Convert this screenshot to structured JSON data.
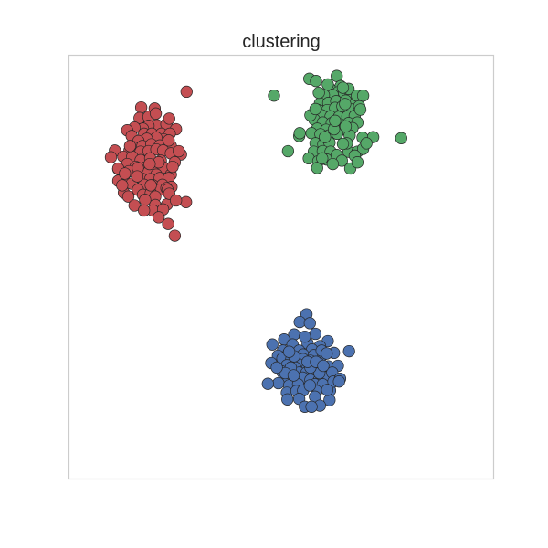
{
  "chart_data": {
    "type": "scatter",
    "title": "clustering",
    "xlabel": "",
    "ylabel": "",
    "x_ticks": [],
    "y_ticks": [],
    "xlim": [
      -4.31,
      3.27
    ],
    "ylim": [
      -3.29,
      4.27
    ],
    "grid": false,
    "legend": false,
    "series": [
      {
        "color": "#c44e52",
        "points": [
          [
            -3.02,
            3.34
          ],
          [
            -2.78,
            3.32
          ],
          [
            -3.05,
            3.15
          ],
          [
            -2.89,
            3.17
          ],
          [
            -2.74,
            3.02
          ],
          [
            -2.57,
            3.04
          ],
          [
            -2.52,
            3.14
          ],
          [
            -2.89,
            3.01
          ],
          [
            -2.99,
            2.96
          ],
          [
            -3.14,
            2.98
          ],
          [
            -3.27,
            2.93
          ],
          [
            -3.19,
            2.83
          ],
          [
            -2.97,
            2.87
          ],
          [
            -2.83,
            2.87
          ],
          [
            -2.66,
            2.87
          ],
          [
            -2.4,
            2.95
          ],
          [
            -2.51,
            2.87
          ],
          [
            -2.62,
            2.77
          ],
          [
            -2.75,
            2.8
          ],
          [
            -2.92,
            2.78
          ],
          [
            -3.07,
            2.74
          ],
          [
            -3.16,
            2.63
          ],
          [
            -3.0,
            2.65
          ],
          [
            -2.84,
            2.68
          ],
          [
            -2.69,
            2.66
          ],
          [
            -2.49,
            2.65
          ],
          [
            -2.53,
            2.75
          ],
          [
            -3.23,
            2.57
          ],
          [
            -3.03,
            2.55
          ],
          [
            -2.89,
            2.56
          ],
          [
            -2.75,
            2.59
          ],
          [
            -2.63,
            2.57
          ],
          [
            -2.49,
            2.52
          ],
          [
            -2.31,
            2.5
          ],
          [
            -3.49,
            2.57
          ],
          [
            -3.34,
            2.46
          ],
          [
            -3.18,
            2.46
          ],
          [
            -3.03,
            2.4
          ],
          [
            -2.86,
            2.43
          ],
          [
            -2.67,
            2.39
          ],
          [
            -2.42,
            2.36
          ],
          [
            -3.27,
            2.33
          ],
          [
            -3.12,
            2.28
          ],
          [
            -2.97,
            2.26
          ],
          [
            -2.81,
            2.3
          ],
          [
            -2.62,
            2.27
          ],
          [
            -3.43,
            2.24
          ],
          [
            -3.24,
            2.2
          ],
          [
            -3.07,
            2.14
          ],
          [
            -2.9,
            2.18
          ],
          [
            -2.75,
            2.14
          ],
          [
            -2.49,
            2.14
          ],
          [
            -3.33,
            2.09
          ],
          [
            -3.01,
            2.07
          ],
          [
            -2.86,
            2.06
          ],
          [
            -2.69,
            2.08
          ],
          [
            -2.53,
            2.08
          ],
          [
            -3.43,
            2.03
          ],
          [
            -3.19,
            1.98
          ],
          [
            -2.97,
            1.96
          ],
          [
            -2.81,
            1.95
          ],
          [
            -2.64,
            1.96
          ],
          [
            -3.08,
            1.87
          ],
          [
            -2.69,
            1.87
          ],
          [
            -2.48,
            1.92
          ],
          [
            -3.33,
            1.82
          ],
          [
            -3.25,
            1.75
          ],
          [
            -2.99,
            1.78
          ],
          [
            -2.85,
            1.81
          ],
          [
            -2.57,
            1.9
          ],
          [
            -2.77,
            1.75
          ],
          [
            -2.55,
            1.87
          ],
          [
            -2.77,
            1.6
          ],
          [
            -2.56,
            1.61
          ],
          [
            -2.95,
            1.69
          ],
          [
            -2.22,
            1.65
          ],
          [
            -2.81,
            1.5
          ],
          [
            -2.63,
            1.52
          ],
          [
            -2.71,
            1.38
          ],
          [
            -3.14,
            1.59
          ],
          [
            -2.54,
            1.26
          ],
          [
            -2.42,
            1.05
          ],
          [
            -2.97,
            1.5
          ],
          [
            -2.52,
            1.8
          ],
          [
            -2.85,
            1.95
          ],
          [
            -2.21,
            3.62
          ],
          [
            -3.43,
            2.25
          ],
          [
            -2.4,
            1.68
          ],
          [
            -3.08,
            2.26
          ],
          [
            -3.56,
            2.45
          ],
          [
            -2.35,
            2.56
          ],
          [
            -2.71,
            2.36
          ],
          [
            -3.09,
            2.11
          ],
          [
            -2.87,
            2.33
          ],
          [
            -2.46,
            2.28
          ],
          [
            -3.36,
            1.95
          ],
          [
            -3.22,
            2.65
          ],
          [
            -2.76,
            3.23
          ],
          [
            -3.31,
            2.16
          ]
        ]
      },
      {
        "color": "#55a868",
        "points": [
          [
            -0.02,
            3.85
          ],
          [
            0.1,
            3.81
          ],
          [
            0.47,
            3.9
          ],
          [
            0.54,
            3.72
          ],
          [
            0.35,
            3.67
          ],
          [
            0.49,
            3.61
          ],
          [
            0.4,
            3.56
          ],
          [
            0.6,
            3.6
          ],
          [
            0.72,
            3.56
          ],
          [
            0.68,
            3.67
          ],
          [
            0.58,
            3.69
          ],
          [
            0.24,
            3.56
          ],
          [
            0.17,
            3.41
          ],
          [
            0.32,
            3.42
          ],
          [
            0.46,
            3.45
          ],
          [
            0.63,
            3.46
          ],
          [
            0.8,
            3.42
          ],
          [
            0.83,
            3.55
          ],
          [
            0.94,
            3.55
          ],
          [
            -0.65,
            3.55
          ],
          [
            0.15,
            3.29
          ],
          [
            0.3,
            3.29
          ],
          [
            0.44,
            3.33
          ],
          [
            0.58,
            3.29
          ],
          [
            0.74,
            3.3
          ],
          [
            0.87,
            3.36
          ],
          [
            0.2,
            3.2
          ],
          [
            0.36,
            3.18
          ],
          [
            0.51,
            3.17
          ],
          [
            0.66,
            3.18
          ],
          [
            0.79,
            3.19
          ],
          [
            0.89,
            3.3
          ],
          [
            0.07,
            3.12
          ],
          [
            0.22,
            3.07
          ],
          [
            0.38,
            3.06
          ],
          [
            0.52,
            3.04
          ],
          [
            0.68,
            3.06
          ],
          [
            0.84,
            3.07
          ],
          [
            0.12,
            2.96
          ],
          [
            0.28,
            2.94
          ],
          [
            0.44,
            2.96
          ],
          [
            0.6,
            2.95
          ],
          [
            0.75,
            2.97
          ],
          [
            -0.2,
            2.83
          ],
          [
            0.02,
            2.88
          ],
          [
            0.18,
            2.86
          ],
          [
            0.33,
            2.84
          ],
          [
            0.48,
            2.87
          ],
          [
            0.7,
            2.84
          ],
          [
            0.93,
            2.8
          ],
          [
            1.12,
            2.81
          ],
          [
            0.09,
            2.7
          ],
          [
            0.23,
            2.68
          ],
          [
            0.34,
            2.71
          ],
          [
            0.06,
            2.55
          ],
          [
            0.22,
            2.56
          ],
          [
            0.36,
            2.55
          ],
          [
            -0.03,
            2.43
          ],
          [
            0.14,
            2.38
          ],
          [
            0.29,
            2.41
          ],
          [
            0.47,
            2.49
          ],
          [
            0.68,
            2.55
          ],
          [
            0.84,
            2.55
          ],
          [
            0.94,
            2.6
          ],
          [
            0.79,
            2.48
          ],
          [
            0.56,
            2.39
          ],
          [
            0.4,
            2.33
          ],
          [
            0.12,
            2.26
          ],
          [
            0.71,
            2.25
          ],
          [
            0.84,
            2.36
          ],
          [
            0.65,
            2.7
          ],
          [
            -0.4,
            2.56
          ],
          [
            -0.19,
            2.88
          ],
          [
            0.42,
            2.95
          ],
          [
            0.0,
            3.2
          ],
          [
            0.57,
            3.36
          ],
          [
            0.31,
            3.75
          ],
          [
            0.63,
            3.0
          ],
          [
            1.0,
            2.7
          ],
          [
            1.62,
            2.79
          ],
          [
            0.15,
            3.6
          ],
          [
            0.58,
            2.69
          ],
          [
            0.26,
            2.81
          ],
          [
            0.09,
            3.31
          ],
          [
            0.62,
            3.4
          ],
          [
            0.44,
            3.1
          ],
          [
            0.21,
            2.43
          ]
        ]
      },
      {
        "color": "#4c72b0",
        "points": [
          [
            -0.07,
            -0.35
          ],
          [
            -0.19,
            -0.49
          ],
          [
            -0.01,
            -0.51
          ],
          [
            -0.29,
            -0.71
          ],
          [
            0.09,
            -0.7
          ],
          [
            -0.47,
            -0.8
          ],
          [
            0.31,
            -0.83
          ],
          [
            -0.32,
            -0.89
          ],
          [
            0.17,
            -0.92
          ],
          [
            -0.05,
            -0.87
          ],
          [
            -0.2,
            -1.0
          ],
          [
            0.03,
            -0.98
          ],
          [
            -0.68,
            -0.89
          ],
          [
            -0.49,
            -1.0
          ],
          [
            -0.39,
            -1.04
          ],
          [
            -0.58,
            -1.09
          ],
          [
            -0.13,
            -1.07
          ],
          [
            0.06,
            -1.08
          ],
          [
            0.23,
            -1.07
          ],
          [
            0.42,
            -1.04
          ],
          [
            0.69,
            -1.01
          ],
          [
            -0.5,
            -1.14
          ],
          [
            -0.34,
            -1.15
          ],
          [
            -0.13,
            -1.15
          ],
          [
            -0.23,
            -1.23
          ],
          [
            0.0,
            -1.18
          ],
          [
            0.14,
            -1.22
          ],
          [
            -0.42,
            -1.26
          ],
          [
            -0.7,
            -1.22
          ],
          [
            -0.27,
            -1.3
          ],
          [
            -0.05,
            -1.3
          ],
          [
            0.18,
            -1.31
          ],
          [
            0.32,
            -1.28
          ],
          [
            0.49,
            -1.27
          ],
          [
            -0.51,
            -1.37
          ],
          [
            -0.32,
            -1.38
          ],
          [
            -0.2,
            -1.39
          ],
          [
            -0.07,
            -1.39
          ],
          [
            0.06,
            -1.41
          ],
          [
            0.25,
            -1.38
          ],
          [
            -0.47,
            -1.49
          ],
          [
            -0.29,
            -1.52
          ],
          [
            -0.14,
            -1.48
          ],
          [
            0.0,
            -1.52
          ],
          [
            0.15,
            -1.53
          ],
          [
            0.31,
            -1.47
          ],
          [
            0.39,
            -1.39
          ],
          [
            -0.57,
            -1.58
          ],
          [
            -0.38,
            -1.62
          ],
          [
            -0.22,
            -1.6
          ],
          [
            0.08,
            -1.6
          ],
          [
            0.22,
            -1.6
          ],
          [
            -0.42,
            -1.75
          ],
          [
            -0.25,
            -1.72
          ],
          [
            -0.13,
            -1.71
          ],
          [
            0.11,
            -1.72
          ],
          [
            0.35,
            -1.71
          ],
          [
            -0.41,
            -1.87
          ],
          [
            -0.2,
            -1.86
          ],
          [
            0.08,
            -1.82
          ],
          [
            0.34,
            -1.88
          ],
          [
            -0.1,
            -2.0
          ],
          [
            0.17,
            -1.98
          ],
          [
            0.02,
            -2.0
          ],
          [
            0.41,
            -1.55
          ],
          [
            0.16,
            -1.4
          ],
          [
            -0.35,
            -1.3
          ],
          [
            -0.1,
            -0.75
          ],
          [
            -0.29,
            -1.1
          ],
          [
            -0.45,
            -1.4
          ],
          [
            0.2,
            -1.0
          ],
          [
            -0.76,
            -1.59
          ],
          [
            0.0,
            -1.3
          ],
          [
            0.53,
            -1.5
          ],
          [
            -0.05,
            -1.2
          ],
          [
            0.3,
            -1.7
          ],
          [
            -0.6,
            -1.3
          ],
          [
            0.1,
            -1.2
          ],
          [
            -0.38,
            -1.02
          ],
          [
            -0.01,
            -1.62
          ],
          [
            0.23,
            -1.27
          ],
          [
            0.29,
            -1.05
          ],
          [
            0.51,
            -1.55
          ],
          [
            -0.3,
            -1.44
          ]
        ]
      }
    ]
  }
}
